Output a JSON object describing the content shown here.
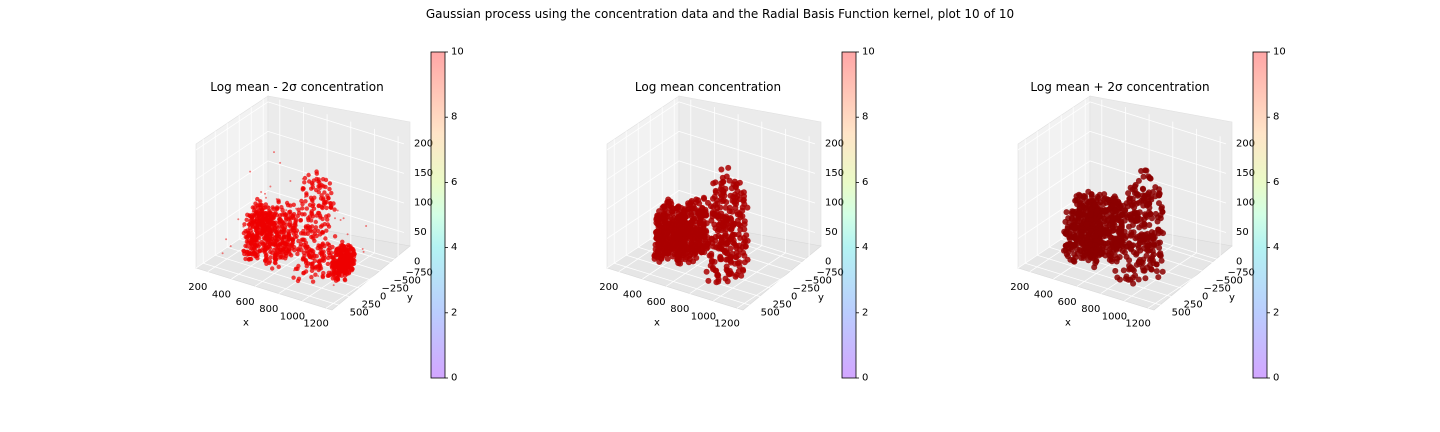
{
  "figure": {
    "suptitle": "Gaussian process using the  concentration data and the Radial Basis Function kernel, plot 10 of 10"
  },
  "chart_data": [
    {
      "type": "scatter3d",
      "title": "Log mean - 2σ concentration",
      "xlabel": "x",
      "ylabel": "y",
      "zlabel": "",
      "x_ticks": [
        "200",
        "400",
        "600",
        "800",
        "1000",
        "1200"
      ],
      "y_ticks": [
        "500",
        "250",
        "0",
        "−250",
        "−500",
        "−750"
      ],
      "z_ticks": [
        "0",
        "50",
        "100",
        "150",
        "200"
      ],
      "xlim": [
        100,
        1250
      ],
      "ylim": [
        -850,
        650
      ],
      "zlim": [
        0,
        210
      ],
      "point_color": "#ee0000",
      "colorbar": {
        "min": 0,
        "max": 10,
        "ticks": [
          "0",
          "2",
          "4",
          "6",
          "8",
          "10"
        ],
        "colormap": "rainbow"
      },
      "blobs": [
        {
          "x": 390,
          "y": 80,
          "z_min": 10,
          "z_max": 110,
          "rx": 60,
          "ry": 260
        },
        {
          "x": 560,
          "y": 60,
          "z_min": 10,
          "z_max": 120,
          "rx": 70,
          "ry": 300
        },
        {
          "x": 830,
          "y": 0,
          "z_min": 0,
          "z_max": 200,
          "rx": 130,
          "ry": 320
        },
        {
          "x": 1020,
          "y": -150,
          "z_min": 0,
          "z_max": 60,
          "rx": 60,
          "ry": 200
        }
      ]
    },
    {
      "type": "scatter3d",
      "title": "Log mean concentration",
      "xlabel": "x",
      "ylabel": "y",
      "zlabel": "",
      "x_ticks": [
        "200",
        "400",
        "600",
        "800",
        "1000",
        "1200"
      ],
      "y_ticks": [
        "500",
        "250",
        "0",
        "−250",
        "−500",
        "−750"
      ],
      "z_ticks": [
        "0",
        "50",
        "100",
        "150",
        "200"
      ],
      "xlim": [
        100,
        1250
      ],
      "ylim": [
        -850,
        650
      ],
      "zlim": [
        0,
        210
      ],
      "point_color": "#aa0000",
      "colorbar": {
        "min": 0,
        "max": 10,
        "ticks": [
          "0",
          "2",
          "4",
          "6",
          "8",
          "10"
        ],
        "colormap": "rainbow"
      },
      "blobs": [
        {
          "x": 400,
          "y": 80,
          "z_min": 10,
          "z_max": 110,
          "rx": 90,
          "ry": 280
        },
        {
          "x": 570,
          "y": 60,
          "z_min": 15,
          "z_max": 125,
          "rx": 80,
          "ry": 300
        },
        {
          "x": 840,
          "y": 0,
          "z_min": 0,
          "z_max": 200,
          "rx": 140,
          "ry": 330
        }
      ]
    },
    {
      "type": "scatter3d",
      "title": "Log mean + 2σ concentration",
      "xlabel": "x",
      "ylabel": "y",
      "zlabel": "",
      "x_ticks": [
        "200",
        "400",
        "600",
        "800",
        "1000",
        "1200"
      ],
      "y_ticks": [
        "500",
        "250",
        "0",
        "−250",
        "−500",
        "−750"
      ],
      "z_ticks": [
        "0",
        "50",
        "100",
        "150",
        "200"
      ],
      "xlim": [
        100,
        1250
      ],
      "ylim": [
        -850,
        650
      ],
      "zlim": [
        0,
        210
      ],
      "point_color": "#8b0000",
      "colorbar": {
        "min": 0,
        "max": 10,
        "ticks": [
          "0",
          "2",
          "4",
          "6",
          "8",
          "10"
        ],
        "colormap": "rainbow"
      },
      "blobs": [
        {
          "x": 420,
          "y": 80,
          "z_min": 10,
          "z_max": 130,
          "rx": 110,
          "ry": 300
        },
        {
          "x": 590,
          "y": 60,
          "z_min": 15,
          "z_max": 140,
          "rx": 90,
          "ry": 320
        },
        {
          "x": 860,
          "y": 0,
          "z_min": 0,
          "z_max": 200,
          "rx": 150,
          "ry": 350
        }
      ]
    }
  ]
}
